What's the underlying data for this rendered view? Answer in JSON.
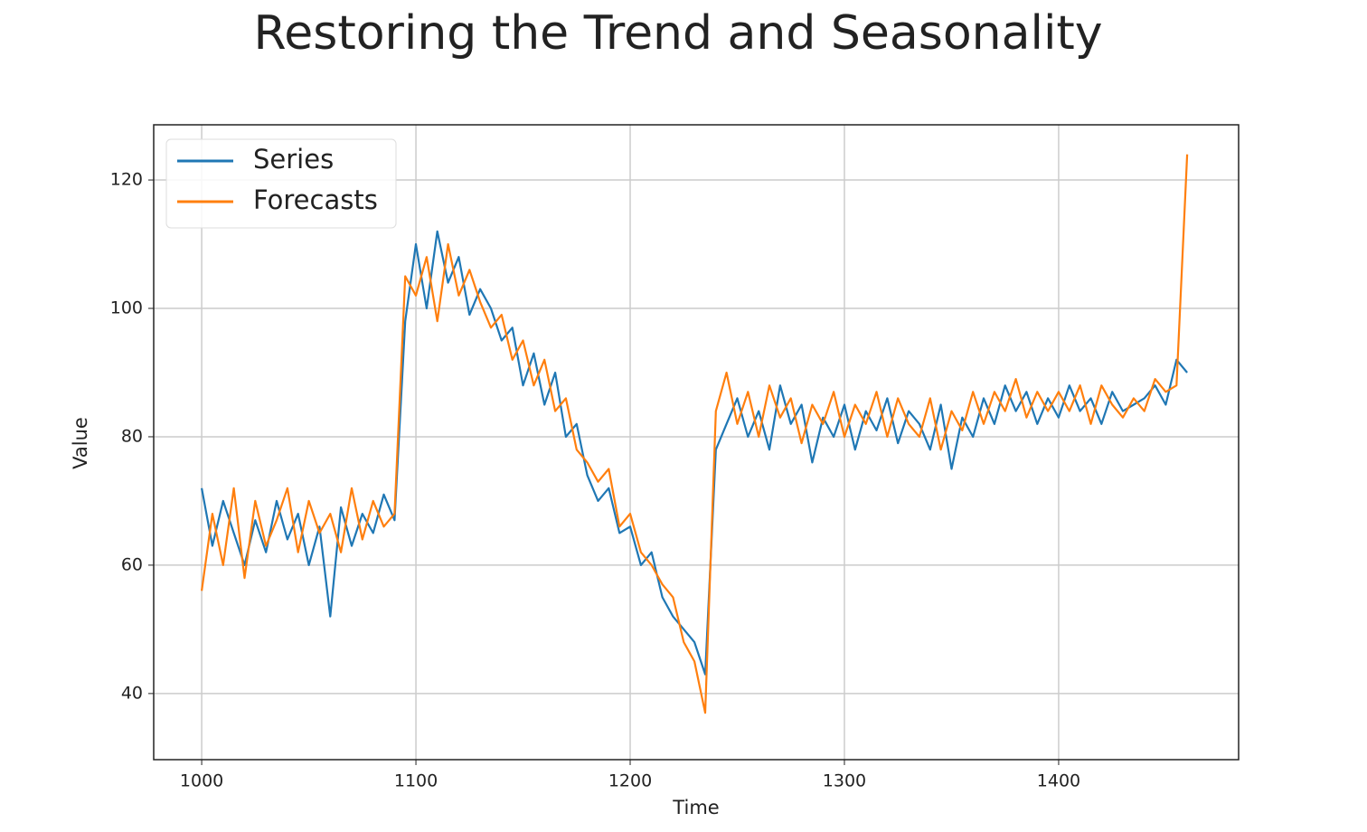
{
  "chart_data": {
    "type": "line",
    "title": "Restoring the Trend and Seasonality",
    "xlabel": "Time",
    "ylabel": "Value",
    "x": [
      1000,
      1005,
      1010,
      1015,
      1020,
      1025,
      1030,
      1035,
      1040,
      1045,
      1050,
      1055,
      1060,
      1065,
      1070,
      1075,
      1080,
      1085,
      1090,
      1095,
      1100,
      1105,
      1110,
      1115,
      1120,
      1125,
      1130,
      1135,
      1140,
      1145,
      1150,
      1155,
      1160,
      1165,
      1170,
      1175,
      1180,
      1185,
      1190,
      1195,
      1200,
      1205,
      1210,
      1215,
      1220,
      1225,
      1230,
      1235,
      1240,
      1245,
      1250,
      1255,
      1260,
      1265,
      1270,
      1275,
      1280,
      1285,
      1290,
      1295,
      1300,
      1305,
      1310,
      1315,
      1320,
      1325,
      1330,
      1335,
      1340,
      1345,
      1350,
      1355,
      1360,
      1365,
      1370,
      1375,
      1380,
      1385,
      1390,
      1395,
      1400,
      1405,
      1410,
      1415,
      1420,
      1425,
      1430,
      1435,
      1440,
      1445,
      1450,
      1455,
      1460
    ],
    "series": [
      {
        "name": "Series",
        "color": "#1f77b4",
        "values": [
          72,
          63,
          70,
          65,
          60,
          67,
          62,
          70,
          64,
          68,
          60,
          66,
          52,
          69,
          63,
          68,
          65,
          71,
          67,
          98,
          110,
          100,
          112,
          104,
          108,
          99,
          103,
          100,
          95,
          97,
          88,
          93,
          85,
          90,
          80,
          82,
          74,
          70,
          72,
          65,
          66,
          60,
          62,
          55,
          52,
          50,
          48,
          43,
          78,
          82,
          86,
          80,
          84,
          78,
          88,
          82,
          85,
          76,
          83,
          80,
          85,
          78,
          84,
          81,
          86,
          79,
          84,
          82,
          78,
          85,
          75,
          83,
          80,
          86,
          82,
          88,
          84,
          87,
          82,
          86,
          83,
          88,
          84,
          86,
          82,
          87,
          84,
          85,
          86,
          88,
          85,
          92,
          90
        ]
      },
      {
        "name": "Forecasts",
        "color": "#ff7f0e",
        "values": [
          56,
          68,
          60,
          72,
          58,
          70,
          63,
          67,
          72,
          62,
          70,
          65,
          68,
          62,
          72,
          64,
          70,
          66,
          68,
          105,
          102,
          108,
          98,
          110,
          102,
          106,
          101,
          97,
          99,
          92,
          95,
          88,
          92,
          84,
          86,
          78,
          76,
          73,
          75,
          66,
          68,
          62,
          60,
          57,
          55,
          48,
          45,
          37,
          84,
          90,
          82,
          87,
          80,
          88,
          83,
          86,
          79,
          85,
          82,
          87,
          80,
          85,
          82,
          87,
          80,
          86,
          82,
          80,
          86,
          78,
          84,
          81,
          87,
          82,
          87,
          84,
          89,
          83,
          87,
          84,
          87,
          84,
          88,
          82,
          88,
          85,
          83,
          86,
          84,
          89,
          87,
          88,
          124
        ]
      }
    ],
    "xlim": [
      977.6,
      1484
    ],
    "ylim": [
      29.7,
      128.6
    ],
    "xticks": [
      1000,
      1100,
      1200,
      1300,
      1400
    ],
    "yticks": [
      40,
      60,
      80,
      100,
      120
    ],
    "grid": true,
    "legend": "upper left"
  }
}
